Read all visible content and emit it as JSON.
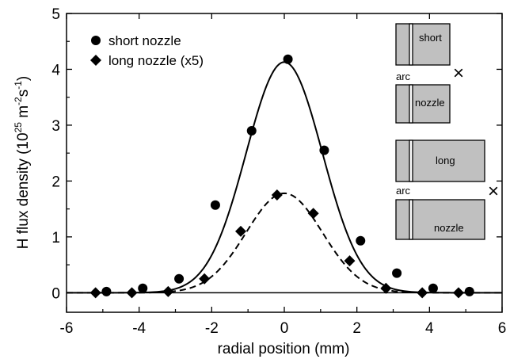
{
  "chart_data": {
    "type": "scatter",
    "xlabel": "radial position (mm)",
    "ylabel_main": "H flux density (10",
    "ylabel_exp1": "25",
    "ylabel_units": " m",
    "ylabel_exp2": "-2",
    "ylabel_s": "s",
    "ylabel_exp3": "-1",
    "ylabel_close": ")",
    "xlim": [
      -6,
      6
    ],
    "ylim": [
      -0.35,
      5
    ],
    "x_ticks": [
      {
        "value": -6,
        "label": "-6"
      },
      {
        "value": -4,
        "label": "-4"
      },
      {
        "value": -2,
        "label": "-2"
      },
      {
        "value": 0,
        "label": "0"
      },
      {
        "value": 2,
        "label": "2"
      },
      {
        "value": 4,
        "label": "4"
      },
      {
        "value": 6,
        "label": "6"
      }
    ],
    "y_ticks": [
      {
        "value": 0,
        "label": "0"
      },
      {
        "value": 1,
        "label": "1"
      },
      {
        "value": 2,
        "label": "2"
      },
      {
        "value": 3,
        "label": "3"
      },
      {
        "value": 4,
        "label": "4"
      },
      {
        "value": 5,
        "label": "5"
      }
    ],
    "grid": false,
    "legend_position": "top-left",
    "series": [
      {
        "name": "short nozzle",
        "marker": "circle",
        "x": [
          -4.9,
          -3.9,
          -2.9,
          -1.9,
          -0.9,
          0.1,
          1.1,
          2.1,
          3.1,
          4.1,
          5.1
        ],
        "y": [
          0.02,
          0.08,
          0.25,
          1.57,
          2.9,
          4.18,
          2.55,
          0.93,
          0.35,
          0.08,
          0.02
        ],
        "fit": {
          "style": "solid",
          "amplitude": 4.13,
          "center": 0.0,
          "sigma": 1.05,
          "baseline": 0.0
        }
      },
      {
        "name": "long nozzle (x5)",
        "marker": "diamond",
        "x": [
          -5.2,
          -4.2,
          -3.2,
          -2.2,
          -1.2,
          -0.2,
          0.8,
          1.8,
          2.8,
          3.8,
          4.8
        ],
        "y": [
          0.0,
          0.0,
          0.02,
          0.25,
          1.1,
          1.75,
          1.42,
          0.57,
          0.08,
          0.0,
          0.0
        ],
        "fit": {
          "style": "dashed",
          "amplitude": 1.78,
          "center": 0.0,
          "sigma": 1.05,
          "baseline": 0.0
        }
      }
    ],
    "inset": {
      "short_top_label": "short",
      "short_arc_label": "arc",
      "short_bottom_label": "nozzle",
      "long_top_label": "long",
      "long_arc_label": "arc",
      "long_bottom_label": "nozzle",
      "cross_symbol": "×"
    }
  }
}
